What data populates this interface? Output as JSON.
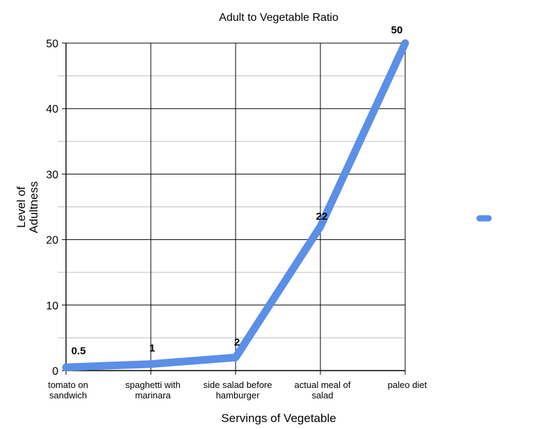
{
  "chart_data": {
    "type": "line",
    "title": "Adult to Vegetable Ratio",
    "xlabel": "Servings of Vegetable",
    "ylabel": "Level of Adultness",
    "ylabel_lines": [
      "Level of",
      "Adultness"
    ],
    "categories": [
      "tomato on sandwich",
      "spaghetti with marinara",
      "side salad before hamburger",
      "actual meal of salad",
      "paleo diet"
    ],
    "category_lines": [
      [
        "tomato on",
        "sandwich"
      ],
      [
        "spaghetti with",
        "marinara"
      ],
      [
        "side salad before",
        "hamburger"
      ],
      [
        "actual meal of",
        "salad"
      ],
      [
        "paleo diet"
      ]
    ],
    "series": [
      {
        "name": "",
        "values": [
          0.5,
          1,
          2,
          22,
          50
        ],
        "color": "#5b8fe8"
      }
    ],
    "data_labels": [
      "0.5",
      "1",
      "2",
      "22",
      "50"
    ],
    "ylim": [
      0,
      50
    ],
    "yticks": [
      0,
      10,
      20,
      30,
      40,
      50
    ],
    "ytick_labels": [
      "0",
      "10",
      "20",
      "30",
      "40",
      "50"
    ],
    "minor_gridlines": [
      5,
      15,
      25,
      35,
      45
    ],
    "grid": true,
    "legend": {
      "position": "right",
      "entries": [
        ""
      ]
    }
  }
}
